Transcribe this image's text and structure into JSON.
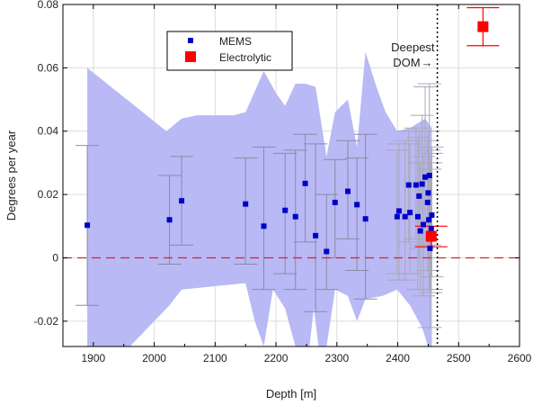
{
  "colors": {
    "mems": "#0000cc",
    "mems_band": "#b9b9f5",
    "mems_errorbar": "#8a8aa6",
    "electrolytic": "#ff0000",
    "zero_line": "#e02020",
    "deepest_dom_line": "#000000",
    "grid": "#dcdcdc"
  },
  "chart_data": {
    "type": "scatter",
    "xlabel": "Depth [m]",
    "ylabel": "Degrees per year",
    "xlim": [
      1850,
      2600
    ],
    "ylim": [
      -0.028,
      0.08
    ],
    "xticks": [
      1900,
      2000,
      2100,
      2200,
      2300,
      2400,
      2500,
      2600
    ],
    "yticks": [
      -0.02,
      0,
      0.02,
      0.04,
      0.06,
      0.08
    ],
    "xtick_labels": [
      "1900",
      "2000",
      "2100",
      "2200",
      "2300",
      "2400",
      "2500",
      "2600"
    ],
    "ytick_labels": [
      "-0.02",
      "0",
      "0.02",
      "0.04",
      "0.06",
      "0.08"
    ],
    "grid": true,
    "legend": {
      "placement": "top-left",
      "entries": [
        "MEMS",
        "Electrolytic"
      ]
    },
    "annotation": {
      "line1": "Deepest",
      "line2": "DOM",
      "arrow": "→",
      "x": 2465
    },
    "zero_line_y": 0,
    "series": [
      {
        "name": "MEMS",
        "marker": "square",
        "points": [
          {
            "x": 1890,
            "y": 0.0103,
            "lo": -0.015,
            "hi": 0.0355
          },
          {
            "x": 2025,
            "y": 0.012,
            "lo": -0.002,
            "hi": 0.026
          },
          {
            "x": 2045,
            "y": 0.018,
            "lo": 0.004,
            "hi": 0.032
          },
          {
            "x": 2150,
            "y": 0.017,
            "lo": -0.002,
            "hi": 0.0315
          },
          {
            "x": 2180,
            "y": 0.01,
            "lo": -0.01,
            "hi": 0.035
          },
          {
            "x": 2215,
            "y": 0.015,
            "lo": -0.005,
            "hi": 0.033
          },
          {
            "x": 2232,
            "y": 0.013,
            "lo": -0.01,
            "hi": 0.034
          },
          {
            "x": 2248,
            "y": 0.0235,
            "lo": 0.005,
            "hi": 0.039
          },
          {
            "x": 2265,
            "y": 0.007,
            "lo": -0.017,
            "hi": 0.036
          },
          {
            "x": 2283,
            "y": 0.002,
            "lo": -0.01,
            "hi": 0.02
          },
          {
            "x": 2297,
            "y": 0.0175,
            "lo": 0.0,
            "hi": 0.031
          },
          {
            "x": 2318,
            "y": 0.021,
            "lo": 0.006,
            "hi": 0.037
          },
          {
            "x": 2333,
            "y": 0.0168,
            "lo": -0.004,
            "hi": 0.0315
          },
          {
            "x": 2347,
            "y": 0.0123,
            "lo": -0.013,
            "hi": 0.039
          },
          {
            "x": 2399,
            "y": 0.013,
            "lo": -0.005,
            "hi": 0.034
          },
          {
            "x": 2402,
            "y": 0.0148,
            "lo": -0.007,
            "hi": 0.036
          },
          {
            "x": 2412,
            "y": 0.013,
            "lo": -0.007,
            "hi": 0.037
          },
          {
            "x": 2418,
            "y": 0.023,
            "lo": 0.005,
            "hi": 0.04
          },
          {
            "x": 2420,
            "y": 0.0143,
            "lo": -0.005,
            "hi": 0.036
          },
          {
            "x": 2430,
            "y": 0.023,
            "lo": 0.006,
            "hi": 0.041
          },
          {
            "x": 2433,
            "y": 0.013,
            "lo": -0.01,
            "hi": 0.038
          },
          {
            "x": 2435,
            "y": 0.0195,
            "lo": 0.0,
            "hi": 0.04
          },
          {
            "x": 2437,
            "y": 0.0085,
            "lo": -0.01,
            "hi": 0.03
          },
          {
            "x": 2440,
            "y": 0.0233,
            "lo": 0.003,
            "hi": 0.045
          },
          {
            "x": 2442,
            "y": 0.0105,
            "lo": -0.012,
            "hi": 0.032
          },
          {
            "x": 2445,
            "y": 0.0255,
            "lo": 0.004,
            "hi": 0.054
          },
          {
            "x": 2449,
            "y": 0.0175,
            "lo": -0.004,
            "hi": 0.037
          },
          {
            "x": 2450,
            "y": 0.0205,
            "lo": 0.0,
            "hi": 0.04
          },
          {
            "x": 2451,
            "y": 0.012,
            "lo": -0.01,
            "hi": 0.034
          },
          {
            "x": 2452,
            "y": 0.026,
            "lo": 0.004,
            "hi": 0.055
          },
          {
            "x": 2453,
            "y": 0.003,
            "lo": -0.022,
            "hi": 0.028
          },
          {
            "x": 2454,
            "y": 0.0075,
            "lo": -0.011,
            "hi": 0.03
          },
          {
            "x": 2455,
            "y": 0.0092,
            "lo": -0.01,
            "hi": 0.033
          },
          {
            "x": 2456,
            "y": 0.0135,
            "lo": -0.006,
            "hi": 0.035
          }
        ],
        "band": {
          "upper": [
            {
              "x": 1890,
              "y": 0.06
            },
            {
              "x": 2020,
              "y": 0.04
            },
            {
              "x": 2045,
              "y": 0.044
            },
            {
              "x": 2070,
              "y": 0.045
            },
            {
              "x": 2100,
              "y": 0.045
            },
            {
              "x": 2130,
              "y": 0.045
            },
            {
              "x": 2150,
              "y": 0.046
            },
            {
              "x": 2180,
              "y": 0.059
            },
            {
              "x": 2200,
              "y": 0.052
            },
            {
              "x": 2215,
              "y": 0.048
            },
            {
              "x": 2232,
              "y": 0.055
            },
            {
              "x": 2248,
              "y": 0.055
            },
            {
              "x": 2265,
              "y": 0.054
            },
            {
              "x": 2283,
              "y": 0.032
            },
            {
              "x": 2297,
              "y": 0.046
            },
            {
              "x": 2318,
              "y": 0.05
            },
            {
              "x": 2333,
              "y": 0.035
            },
            {
              "x": 2347,
              "y": 0.065
            },
            {
              "x": 2365,
              "y": 0.054
            },
            {
              "x": 2380,
              "y": 0.046
            },
            {
              "x": 2399,
              "y": 0.04
            },
            {
              "x": 2420,
              "y": 0.041
            },
            {
              "x": 2445,
              "y": 0.044
            },
            {
              "x": 2456,
              "y": 0.041
            }
          ],
          "lower": [
            {
              "x": 2456,
              "y": -0.028
            },
            {
              "x": 2450,
              "y": -0.028
            },
            {
              "x": 2440,
              "y": -0.022
            },
            {
              "x": 2420,
              "y": -0.015
            },
            {
              "x": 2399,
              "y": -0.01
            },
            {
              "x": 2375,
              "y": -0.012
            },
            {
              "x": 2347,
              "y": -0.013
            },
            {
              "x": 2333,
              "y": -0.02
            },
            {
              "x": 2318,
              "y": -0.012
            },
            {
              "x": 2297,
              "y": -0.01
            },
            {
              "x": 2283,
              "y": -0.028
            },
            {
              "x": 2270,
              "y": -0.028
            },
            {
              "x": 2262,
              "y": -0.016
            },
            {
              "x": 2255,
              "y": -0.028
            },
            {
              "x": 2232,
              "y": -0.028
            },
            {
              "x": 2215,
              "y": -0.016
            },
            {
              "x": 2195,
              "y": -0.01
            },
            {
              "x": 2180,
              "y": -0.028
            },
            {
              "x": 2165,
              "y": -0.02
            },
            {
              "x": 2150,
              "y": -0.008
            },
            {
              "x": 2045,
              "y": -0.01
            },
            {
              "x": 2025,
              "y": -0.015
            },
            {
              "x": 1960,
              "y": -0.028
            },
            {
              "x": 1890,
              "y": -0.028
            }
          ]
        }
      },
      {
        "name": "Electrolytic",
        "marker": "square",
        "points": [
          {
            "x": 2455,
            "y": 0.0068,
            "lo": 0.0035,
            "hi": 0.01
          },
          {
            "x": 2540,
            "y": 0.073,
            "lo": 0.067,
            "hi": 0.079
          }
        ]
      }
    ]
  }
}
